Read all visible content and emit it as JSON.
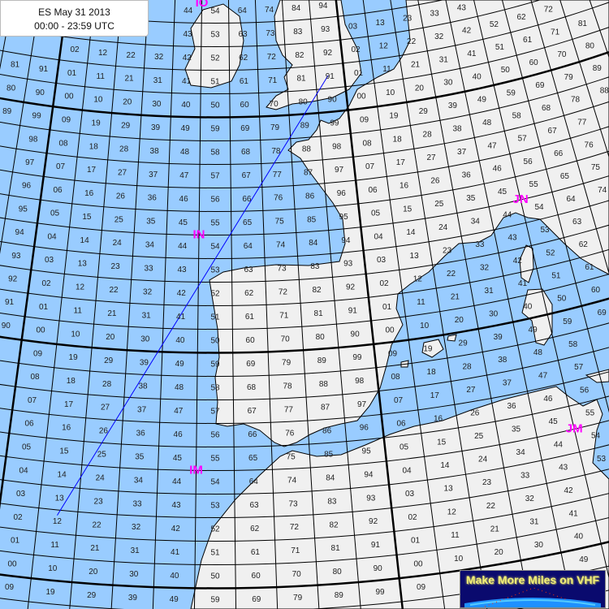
{
  "title": {
    "line1": "ES May 31 2013",
    "line2": "00:00 - 23:59 UTC"
  },
  "logo": {
    "text": "Make More Miles on VHF"
  },
  "colors": {
    "sea": "#99ccff",
    "land": "#f0f0f0",
    "field_label": "#ff00ff",
    "path": "#0000ff",
    "grid": "#000000"
  },
  "fields": [
    {
      "label": "IO",
      "col": 4.5,
      "row": 24.5
    },
    {
      "label": "IN",
      "col": 4.5,
      "row": 14.5
    },
    {
      "label": "IM",
      "col": 4.5,
      "row": 4.5
    },
    {
      "label": "JN",
      "col": 14.5,
      "row": 14.5
    },
    {
      "label": "JM",
      "col": 14.5,
      "row": 4.5
    }
  ],
  "grid": {
    "column_digits": [
      "7",
      "8",
      "9",
      "0",
      "1",
      "2",
      "3",
      "4",
      "5",
      "6",
      "7",
      "8",
      "9",
      "0",
      "1",
      "2",
      "3",
      "4",
      "5",
      "6",
      "7",
      "8",
      "9"
    ],
    "row_digits": [
      "9",
      "0",
      "1",
      "2",
      "3",
      "4",
      "5",
      "6",
      "7",
      "8",
      "9",
      "0",
      "1",
      "2",
      "3",
      "4",
      "5",
      "6",
      "7",
      "8",
      "9",
      "0",
      "1",
      "2",
      "3",
      "4"
    ]
  },
  "path": {
    "from_square": "IM12",
    "to_square": "IO90"
  }
}
